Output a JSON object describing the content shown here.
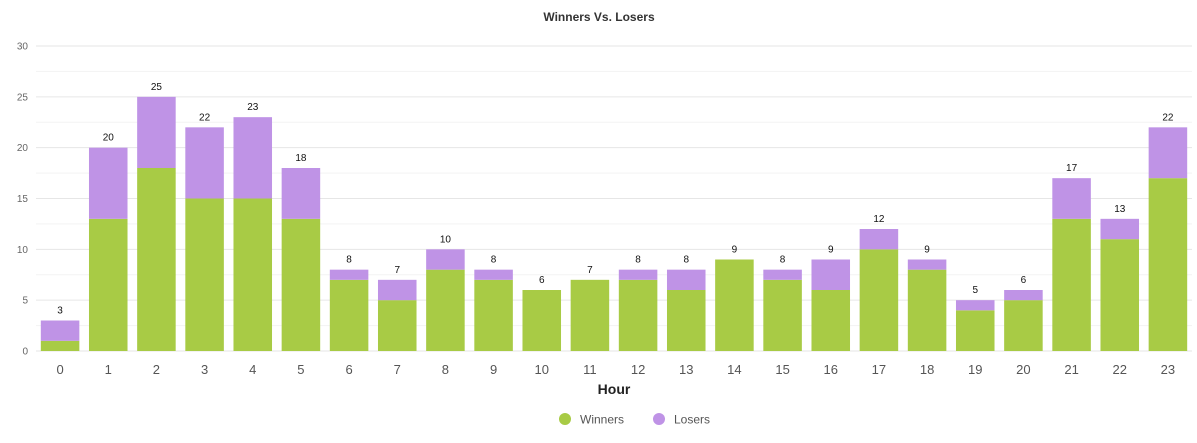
{
  "chart_data": {
    "type": "bar",
    "stacked": true,
    "title": "Winners Vs. Losers",
    "xlabel": "Hour",
    "ylabel": "",
    "ylim": [
      0,
      30
    ],
    "yticks": [
      0,
      5,
      10,
      15,
      20,
      25,
      30
    ],
    "grid": true,
    "legend_position": "bottom-center",
    "categories": [
      "0",
      "1",
      "2",
      "3",
      "4",
      "5",
      "6",
      "7",
      "8",
      "9",
      "10",
      "11",
      "12",
      "13",
      "14",
      "15",
      "16",
      "17",
      "18",
      "19",
      "20",
      "21",
      "22",
      "23"
    ],
    "series": [
      {
        "name": "Winners",
        "color": "#a8cb45",
        "values": [
          1,
          13,
          18,
          15,
          15,
          13,
          7,
          5,
          8,
          7,
          6,
          7,
          7,
          6,
          9,
          7,
          6,
          10,
          8,
          4,
          5,
          13,
          11,
          17
        ]
      },
      {
        "name": "Losers",
        "color": "#bf93e6",
        "values": [
          2,
          7,
          7,
          7,
          8,
          5,
          1,
          2,
          2,
          1,
          0,
          0,
          1,
          2,
          0,
          1,
          3,
          2,
          1,
          1,
          1,
          4,
          2,
          5
        ]
      }
    ],
    "totals": [
      3,
      20,
      25,
      22,
      23,
      18,
      8,
      7,
      10,
      8,
      6,
      7,
      8,
      8,
      9,
      8,
      9,
      12,
      9,
      5,
      6,
      17,
      13,
      22
    ]
  }
}
